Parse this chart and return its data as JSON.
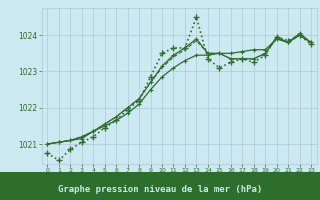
{
  "title": "Graphe pression niveau de la mer (hPa)",
  "background_color": "#cce8f0",
  "plot_bg": "#cce8f0",
  "grid_color": "#b0c8d8",
  "line_color": "#2d6e2d",
  "xlabel_bg": "#2d6e2d",
  "xlabel_fg": "#cce8f0",
  "x_ticks": [
    0,
    1,
    2,
    3,
    4,
    5,
    6,
    7,
    8,
    9,
    10,
    11,
    12,
    13,
    14,
    15,
    16,
    17,
    18,
    19,
    20,
    21,
    22,
    23
  ],
  "ylim": [
    1020.45,
    1024.75
  ],
  "yticks": [
    1021,
    1022,
    1023,
    1024
  ],
  "series": [
    {
      "y": [
        1020.75,
        1020.55,
        1020.85,
        1021.05,
        1021.2,
        1021.45,
        1021.65,
        1021.95,
        1022.2,
        1022.85,
        1023.5,
        1023.65,
        1023.65,
        1024.5,
        1023.35,
        1023.1,
        1023.25,
        1023.35,
        1023.25,
        1023.45,
        1023.95,
        1023.85,
        1024.0,
        1023.75
      ],
      "ls": ":",
      "marker": "+",
      "ms": 4,
      "lw": 1.2,
      "mew": 1.0
    },
    {
      "y": [
        1021.0,
        1021.05,
        1021.1,
        1021.15,
        1021.35,
        1021.5,
        1021.65,
        1021.85,
        1022.1,
        1022.5,
        1022.85,
        1023.1,
        1023.3,
        1023.45,
        1023.45,
        1023.5,
        1023.5,
        1023.55,
        1023.6,
        1023.6,
        1023.9,
        1023.8,
        1024.0,
        1023.8
      ],
      "ls": "-",
      "marker": "+",
      "ms": 3,
      "lw": 0.9,
      "mew": 0.8
    },
    {
      "y": [
        1021.0,
        1021.05,
        1021.1,
        1021.2,
        1021.35,
        1021.55,
        1021.75,
        1022.0,
        1022.25,
        1022.7,
        1023.15,
        1023.45,
        1023.65,
        1023.9,
        1023.5,
        1023.5,
        1023.35,
        1023.35,
        1023.35,
        1023.5,
        1023.95,
        1023.8,
        1024.05,
        1023.8
      ],
      "ls": "-",
      "marker": "+",
      "ms": 3,
      "lw": 0.9,
      "mew": 0.8
    },
    {
      "y": [
        1021.0,
        1021.05,
        1021.1,
        1021.2,
        1021.35,
        1021.55,
        1021.75,
        1022.0,
        1022.25,
        1022.7,
        1023.1,
        1023.4,
        1023.6,
        1023.85,
        1023.5,
        1023.5,
        1023.35,
        1023.35,
        1023.35,
        1023.5,
        1023.9,
        1023.8,
        1024.0,
        1023.78
      ],
      "ls": "--",
      "marker": null,
      "ms": 0,
      "lw": 0.8,
      "mew": 0
    }
  ]
}
